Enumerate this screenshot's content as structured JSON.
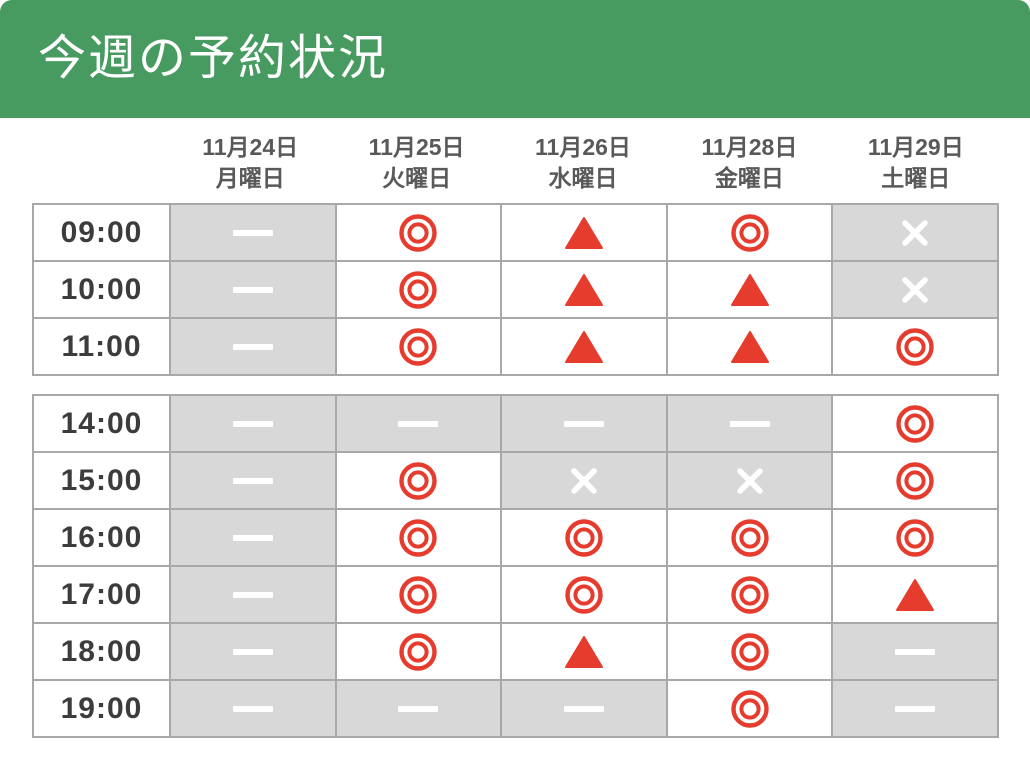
{
  "header": {
    "title": "今週の予約状況",
    "background": "#479a60"
  },
  "columns": [
    {
      "date": "11月24日",
      "weekday": "月曜日"
    },
    {
      "date": "11月25日",
      "weekday": "火曜日"
    },
    {
      "date": "11月26日",
      "weekday": "水曜日"
    },
    {
      "date": "11月28日",
      "weekday": "金曜日"
    },
    {
      "date": "11月29日",
      "weekday": "土曜日"
    }
  ],
  "symbol_colors": {
    "symbol_red": "#e53c2e",
    "unavailable_cell_gray": "#d8d8d8",
    "mark_white": "#ffffff",
    "border_gray": "#a8a8a8",
    "header_text_gray": "#595959",
    "time_text_dark": "#3c3c3c"
  },
  "blocks": [
    {
      "rows": [
        {
          "time": "09:00",
          "cells": [
            "dash",
            "circle",
            "triangle",
            "circle",
            "cross"
          ]
        },
        {
          "time": "10:00",
          "cells": [
            "dash",
            "circle",
            "triangle",
            "triangle",
            "cross"
          ]
        },
        {
          "time": "11:00",
          "cells": [
            "dash",
            "circle",
            "triangle",
            "triangle",
            "circle"
          ]
        }
      ]
    },
    {
      "rows": [
        {
          "time": "14:00",
          "cells": [
            "dash",
            "dash",
            "dash",
            "dash",
            "circle"
          ]
        },
        {
          "time": "15:00",
          "cells": [
            "dash",
            "circle",
            "cross",
            "cross",
            "circle"
          ]
        },
        {
          "time": "16:00",
          "cells": [
            "dash",
            "circle",
            "circle",
            "circle",
            "circle"
          ]
        },
        {
          "time": "17:00",
          "cells": [
            "dash",
            "circle",
            "circle",
            "circle",
            "triangle"
          ]
        },
        {
          "time": "18:00",
          "cells": [
            "dash",
            "circle",
            "triangle",
            "circle",
            "dash"
          ]
        },
        {
          "time": "19:00",
          "cells": [
            "dash",
            "dash",
            "dash",
            "circle",
            "dash"
          ]
        }
      ]
    }
  ]
}
